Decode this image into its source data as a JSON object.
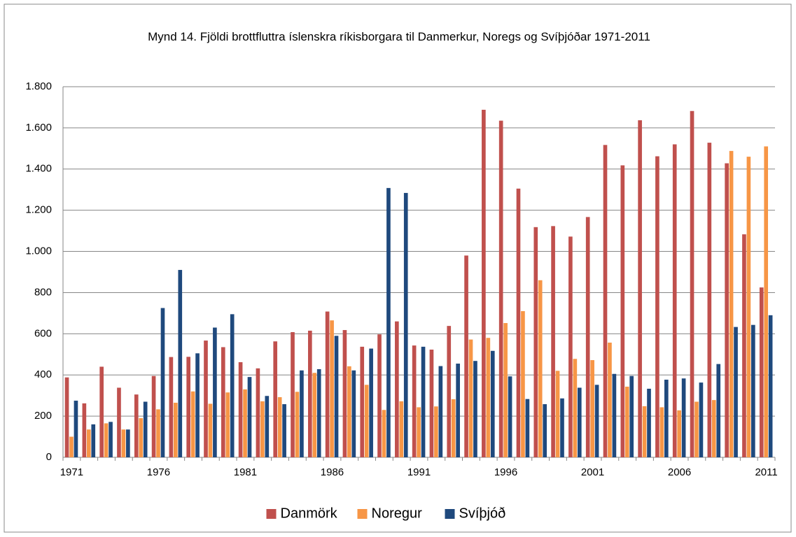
{
  "chart_data": {
    "type": "bar",
    "title": "Mynd 14. Fjöldi brottfluttra íslenskra ríkisborgara til Danmerkur, Noregs og Svíþjóðar 1971-2011",
    "categories": [
      "1971",
      null,
      null,
      null,
      null,
      "1976",
      null,
      null,
      null,
      null,
      "1981",
      null,
      null,
      null,
      null,
      "1986",
      null,
      null,
      null,
      null,
      "1991",
      null,
      null,
      null,
      null,
      "1996",
      null,
      null,
      null,
      null,
      "2001",
      null,
      null,
      null,
      null,
      "2006",
      null,
      null,
      null,
      null,
      "2011"
    ],
    "series": [
      {
        "name": "Danmörk",
        "color": "#c0504d",
        "values": [
          388,
          262,
          440,
          338,
          305,
          395,
          487,
          488,
          567,
          535,
          462,
          432,
          563,
          608,
          615,
          708,
          618,
          537,
          597,
          660,
          543,
          523,
          638,
          980,
          1688,
          1635,
          1305,
          1118,
          1123,
          1072,
          1167,
          1517,
          1418,
          1637,
          1462,
          1520,
          1682,
          1528,
          1428,
          1083,
          825
        ]
      },
      {
        "name": "Noregur",
        "color": "#f79646",
        "values": [
          100,
          135,
          165,
          135,
          190,
          233,
          265,
          320,
          260,
          315,
          330,
          272,
          292,
          318,
          410,
          665,
          442,
          352,
          230,
          272,
          243,
          247,
          282,
          572,
          580,
          652,
          710,
          860,
          420,
          478,
          472,
          557,
          343,
          248,
          243,
          228,
          270,
          278,
          1488,
          1460,
          1510
        ]
      },
      {
        "name": "Svíþjóð",
        "color": "#1f497d",
        "values": [
          275,
          160,
          172,
          135,
          270,
          725,
          910,
          505,
          630,
          695,
          390,
          298,
          258,
          422,
          428,
          590,
          422,
          528,
          1308,
          1284,
          537,
          443,
          455,
          468,
          517,
          393,
          283,
          258,
          286,
          338,
          352,
          405,
          395,
          333,
          377,
          383,
          363,
          453,
          633,
          643,
          690
        ]
      }
    ],
    "ylim": [
      0,
      1800
    ],
    "yticks": [
      0,
      200,
      400,
      600,
      800,
      {
        "value": 1000,
        "label": "1.000"
      },
      {
        "value": 1200,
        "label": "1.200"
      },
      {
        "value": 1400,
        "label": "1.400"
      },
      {
        "value": 1600,
        "label": "1.600"
      },
      {
        "value": 1800,
        "label": "1.800"
      }
    ],
    "grid": true,
    "legend": "bottom"
  }
}
